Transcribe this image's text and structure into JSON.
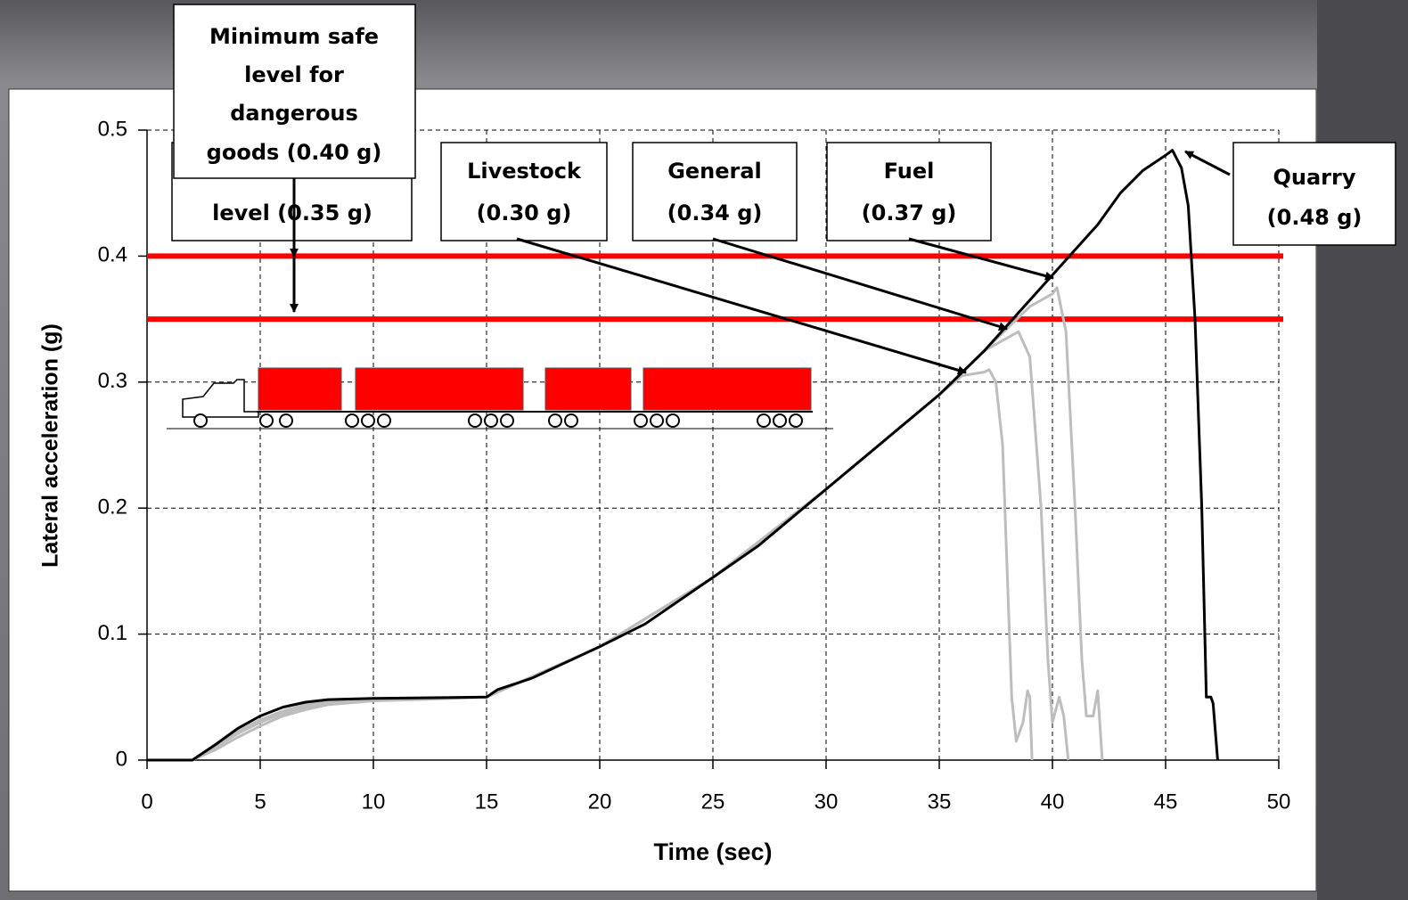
{
  "chart_data": {
    "type": "line",
    "xlabel": "Time (sec)",
    "ylabel": "Lateral acceleration (g)",
    "xlim": [
      0,
      50
    ],
    "xticks": [
      0,
      5,
      10,
      15,
      20,
      25,
      30,
      35,
      40,
      45,
      50
    ],
    "ylim": [
      0,
      0.5
    ],
    "yticks": [
      0,
      0.1,
      0.2,
      0.3,
      0.4,
      0.5
    ],
    "grid": true,
    "reference_lines": [
      {
        "value": 0.4,
        "color": "#ff0000"
      },
      {
        "value": 0.35,
        "color": "#ff0000"
      }
    ],
    "series": [
      {
        "color": "#bdbdbd",
        "x": [
          0,
          2,
          3,
          4,
          5,
          6,
          7,
          8,
          10,
          12,
          15,
          20,
          25,
          30,
          35,
          36,
          37,
          37.2,
          37.5,
          37.8,
          38,
          38.2,
          38.4,
          38.7,
          38.9,
          39,
          39.1
        ],
        "values": [
          0,
          0,
          0.008,
          0.018,
          0.027,
          0.035,
          0.04,
          0.044,
          0.047,
          0.048,
          0.05,
          0.09,
          0.145,
          0.215,
          0.29,
          0.305,
          0.308,
          0.31,
          0.3,
          0.25,
          0.15,
          0.05,
          0.015,
          0.03,
          0.055,
          0.05,
          0
        ]
      },
      {
        "color": "#bdbdbd",
        "x": [
          0,
          2,
          3,
          4,
          5,
          6,
          7,
          8,
          10,
          15,
          20,
          25,
          30,
          35,
          37,
          38,
          38.5,
          39,
          39.5,
          39.8,
          40,
          40.3,
          40.5,
          40.7
        ],
        "values": [
          0,
          0,
          0.01,
          0.021,
          0.03,
          0.037,
          0.042,
          0.045,
          0.048,
          0.05,
          0.09,
          0.145,
          0.215,
          0.29,
          0.325,
          0.335,
          0.34,
          0.32,
          0.2,
          0.08,
          0.03,
          0.05,
          0.035,
          0
        ]
      },
      {
        "color": "#bdbdbd",
        "x": [
          0,
          2,
          3,
          4,
          5,
          6,
          7,
          8,
          10,
          15,
          20,
          25,
          30,
          35,
          37,
          39,
          40,
          40.2,
          40.6,
          41,
          41.3,
          41.5,
          41.8,
          42,
          42.2
        ],
        "values": [
          0,
          0,
          0.011,
          0.023,
          0.032,
          0.039,
          0.044,
          0.046,
          0.048,
          0.05,
          0.09,
          0.145,
          0.215,
          0.29,
          0.325,
          0.36,
          0.37,
          0.375,
          0.34,
          0.2,
          0.08,
          0.035,
          0.035,
          0.055,
          0
        ]
      },
      {
        "color": "#000000",
        "x": [
          0,
          2,
          3,
          4,
          5,
          6,
          7,
          8,
          10,
          15,
          15.5,
          17,
          20,
          22,
          25,
          27,
          30,
          32,
          35,
          37,
          40,
          42,
          43,
          44,
          45,
          45.3,
          45.7,
          46,
          46.3,
          46.6,
          46.8,
          47,
          47.1,
          47.3
        ],
        "values": [
          0,
          0,
          0.012,
          0.025,
          0.035,
          0.042,
          0.046,
          0.048,
          0.049,
          0.05,
          0.056,
          0.065,
          0.09,
          0.108,
          0.145,
          0.17,
          0.215,
          0.245,
          0.29,
          0.325,
          0.385,
          0.425,
          0.45,
          0.468,
          0.48,
          0.484,
          0.47,
          0.44,
          0.35,
          0.2,
          0.05,
          0.05,
          0.045,
          0
        ]
      }
    ],
    "annotations": [
      {
        "lines": [
          "level (0.35 g)"
        ]
      },
      {
        "lines": [
          "Minimum safe",
          "level for",
          "dangerous",
          "goods (0.40 g)"
        ]
      },
      {
        "lines": [
          "Livestock",
          "(0.30 g)"
        ]
      },
      {
        "lines": [
          "General",
          "(0.34 g)"
        ]
      },
      {
        "lines": [
          "Fuel",
          "(0.37 g)"
        ]
      },
      {
        "lines": [
          "Quarry",
          "(0.48 g)"
        ]
      }
    ]
  }
}
